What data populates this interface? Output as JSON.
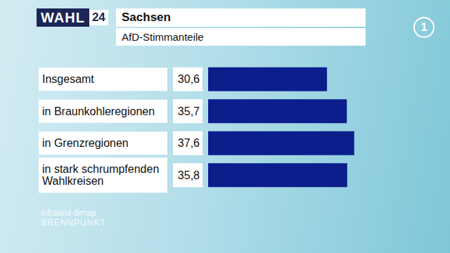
{
  "header": {
    "logo": "WAHL",
    "logo_number": "24",
    "title": "Sachsen",
    "subtitle": "AfD-Stimmanteile"
  },
  "channel_logo": "1",
  "chart_data": {
    "type": "bar",
    "orientation": "horizontal",
    "categories": [
      "Insgesamt",
      "in Braunkohleregionen",
      "in Grenzregionen",
      "in stark schrumpfenden Wahlkreisen"
    ],
    "values": [
      30.6,
      35.7,
      37.6,
      35.8
    ],
    "value_labels": [
      "30,6",
      "35,7",
      "37,6",
      "35,8"
    ],
    "data_labels": true,
    "color": "#0b1e8c",
    "xlim": [
      0,
      40
    ],
    "tick_labels": "y",
    "grid": false
  },
  "footer": {
    "source": "infratest dimap",
    "program": "BRENNPUNKT"
  }
}
